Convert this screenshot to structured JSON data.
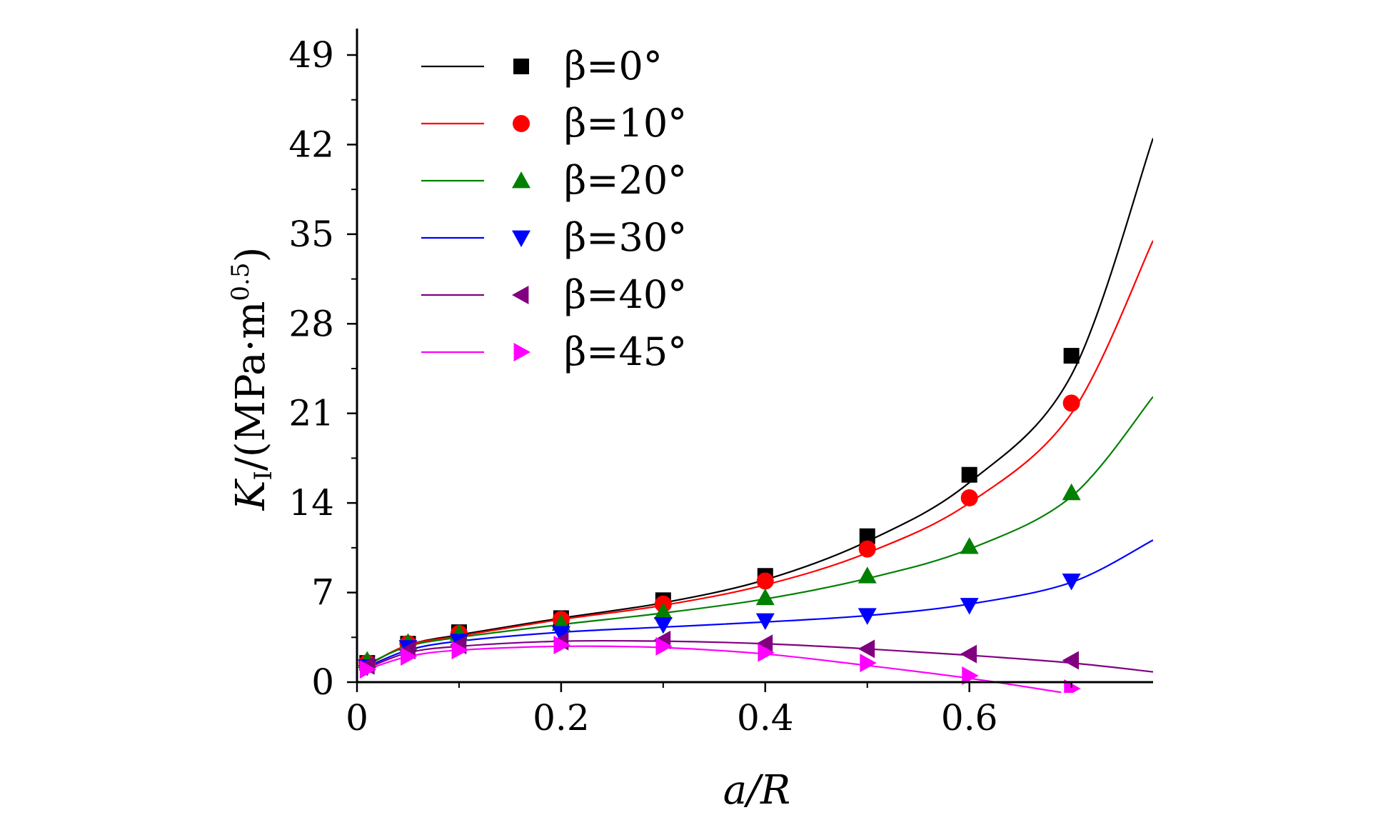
{
  "chart_data": {
    "type": "scatter",
    "xlabel": "a/R",
    "ylabel": "K_I/(MPa·m^0.5)",
    "ylabel_parts": {
      "italic": "K",
      "sub": "I",
      "main": "/(MPa·m",
      "sup": "0.5",
      "close": ")"
    },
    "xlim": [
      0,
      0.78
    ],
    "ylim": [
      0,
      49
    ],
    "xticks": [
      0,
      0.2,
      0.4,
      0.6
    ],
    "xtick_labels": [
      "0",
      "0.2",
      "0.4",
      "0.6"
    ],
    "yticks": [
      0,
      7,
      14,
      21,
      28,
      35,
      42,
      49
    ],
    "ytick_labels": [
      "0",
      "7",
      "14",
      "21",
      "28",
      "35",
      "42",
      "49"
    ],
    "grid": false,
    "legend_position": "top-left",
    "x": [
      0.01,
      0.05,
      0.1,
      0.2,
      0.3,
      0.4,
      0.5,
      0.6,
      0.7
    ],
    "series": [
      {
        "name": "β=0°",
        "color": "#000000",
        "marker": "square",
        "values": [
          1.5,
          3.0,
          3.9,
          5.0,
          6.4,
          8.3,
          11.4,
          16.2,
          25.5
        ],
        "fit": [
          [
            0.01,
            1.3
          ],
          [
            0.05,
            2.9
          ],
          [
            0.1,
            3.7
          ],
          [
            0.2,
            5.0
          ],
          [
            0.3,
            6.2
          ],
          [
            0.4,
            8.0
          ],
          [
            0.5,
            11.0
          ],
          [
            0.6,
            15.6
          ],
          [
            0.7,
            24.0
          ],
          [
            0.78,
            42.5
          ]
        ]
      },
      {
        "name": "β=10°",
        "color": "#ff0000",
        "marker": "circle",
        "values": [
          1.5,
          3.0,
          3.8,
          4.9,
          6.1,
          7.9,
          10.4,
          14.4,
          21.8
        ],
        "fit": [
          [
            0.01,
            1.3
          ],
          [
            0.05,
            2.9
          ],
          [
            0.1,
            3.6
          ],
          [
            0.2,
            4.9
          ],
          [
            0.3,
            6.0
          ],
          [
            0.4,
            7.6
          ],
          [
            0.5,
            10.1
          ],
          [
            0.6,
            14.0
          ],
          [
            0.7,
            21.0
          ],
          [
            0.78,
            34.5
          ]
        ]
      },
      {
        "name": "β=20°",
        "color": "#008000",
        "marker": "triangle-up",
        "values": [
          1.7,
          3.1,
          3.8,
          4.6,
          5.5,
          6.6,
          8.3,
          10.6,
          14.8
        ],
        "fit": [
          [
            0.01,
            1.4
          ],
          [
            0.05,
            2.8
          ],
          [
            0.1,
            3.5
          ],
          [
            0.2,
            4.5
          ],
          [
            0.3,
            5.4
          ],
          [
            0.4,
            6.5
          ],
          [
            0.5,
            8.1
          ],
          [
            0.6,
            10.4
          ],
          [
            0.7,
            14.5
          ],
          [
            0.78,
            22.3
          ]
        ]
      },
      {
        "name": "β=30°",
        "color": "#0000ff",
        "marker": "triangle-down",
        "values": [
          1.2,
          2.7,
          3.2,
          3.8,
          4.5,
          4.8,
          5.2,
          6.0,
          7.9
        ],
        "fit": [
          [
            0.01,
            1.2
          ],
          [
            0.05,
            2.5
          ],
          [
            0.1,
            3.2
          ],
          [
            0.2,
            3.9
          ],
          [
            0.3,
            4.3
          ],
          [
            0.4,
            4.7
          ],
          [
            0.5,
            5.2
          ],
          [
            0.6,
            6.1
          ],
          [
            0.7,
            7.8
          ],
          [
            0.78,
            11.1
          ]
        ]
      },
      {
        "name": "β=40°",
        "color": "#800080",
        "marker": "triangle-left",
        "values": [
          1.3,
          2.5,
          2.9,
          3.2,
          3.3,
          3.0,
          2.6,
          2.2,
          1.7
        ],
        "fit": [
          [
            0.01,
            1.1
          ],
          [
            0.05,
            2.3
          ],
          [
            0.1,
            2.8
          ],
          [
            0.2,
            3.2
          ],
          [
            0.3,
            3.2
          ],
          [
            0.4,
            3.0
          ],
          [
            0.5,
            2.6
          ],
          [
            0.6,
            2.1
          ],
          [
            0.7,
            1.5
          ],
          [
            0.78,
            0.8
          ]
        ]
      },
      {
        "name": "β=45°",
        "color": "#ff00ff",
        "marker": "triangle-right",
        "values": [
          1.0,
          2.0,
          2.5,
          2.9,
          2.8,
          2.3,
          1.5,
          0.5,
          -0.5
        ],
        "fit": [
          [
            0.01,
            1.0
          ],
          [
            0.05,
            2.0
          ],
          [
            0.1,
            2.5
          ],
          [
            0.2,
            2.8
          ],
          [
            0.3,
            2.7
          ],
          [
            0.4,
            2.2
          ],
          [
            0.5,
            1.3
          ],
          [
            0.6,
            0.3
          ],
          [
            0.69,
            -0.8
          ]
        ]
      }
    ]
  }
}
